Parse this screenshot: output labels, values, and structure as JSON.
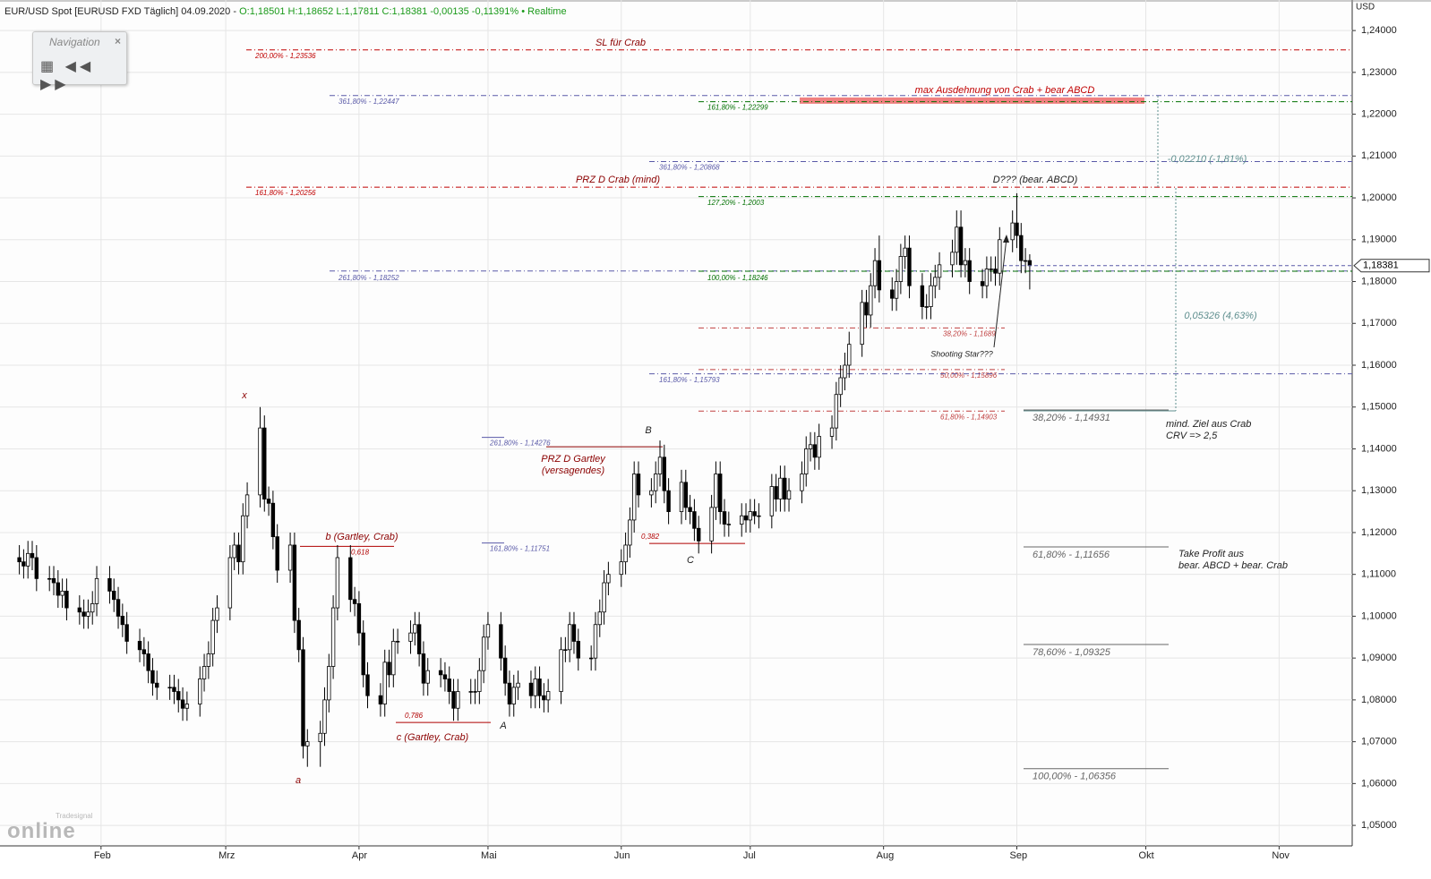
{
  "chart_data": {
    "type": "candlestick",
    "title": "EUR/USD Spot [EURUSD FXD Täglich] 04.09.2020 -",
    "quote": "O:1,18501 H:1,18652 L:1,17811 C:1,18381 -0,00135 -0,11391%",
    "status": "• Realtime",
    "y_unit": "USD",
    "last_price_label": "1,18381",
    "navigation": {
      "title": "Navigation",
      "close": "×"
    },
    "logo": {
      "top": "Tradesignal",
      "bottom": "online"
    },
    "up_color": "#ffffff",
    "down_color": "#000000",
    "grid": true,
    "xlim": [
      8.5,
      323
    ],
    "ylim": [
      1.0451,
      1.2473
    ],
    "xticks": [
      {
        "value": 32,
        "label": "Feb"
      },
      {
        "value": 61,
        "label": "Mrz"
      },
      {
        "value": 92,
        "label": "Apr"
      },
      {
        "value": 122,
        "label": "Mai"
      },
      {
        "value": 153,
        "label": "Jun"
      },
      {
        "value": 183,
        "label": "Jul"
      },
      {
        "value": 214,
        "label": "Aug"
      },
      {
        "value": 245,
        "label": "Sep"
      },
      {
        "value": 275,
        "label": "Okt"
      },
      {
        "value": 306,
        "label": "Nov"
      }
    ],
    "yticks": [
      {
        "value": 1.05,
        "label": "1,05000"
      },
      {
        "value": 1.06,
        "label": "1,06000"
      },
      {
        "value": 1.07,
        "label": "1,07000"
      },
      {
        "value": 1.08,
        "label": "1,08000"
      },
      {
        "value": 1.09,
        "label": "1,09000"
      },
      {
        "value": 1.1,
        "label": "1,10000"
      },
      {
        "value": 1.11,
        "label": "1,11000"
      },
      {
        "value": 1.12,
        "label": "1,12000"
      },
      {
        "value": 1.13,
        "label": "1,13000"
      },
      {
        "value": 1.14,
        "label": "1,14000"
      },
      {
        "value": 1.15,
        "label": "1,15000"
      },
      {
        "value": 1.16,
        "label": "1,16000"
      },
      {
        "value": 1.17,
        "label": "1,17000"
      },
      {
        "value": 1.18,
        "label": "1,18000"
      },
      {
        "value": 1.19,
        "label": "1,19000"
      },
      {
        "value": 1.2,
        "label": "1,20000"
      },
      {
        "value": 1.21,
        "label": "1,21000"
      },
      {
        "value": 1.22,
        "label": "1,22000"
      },
      {
        "value": 1.23,
        "label": "1,23000"
      },
      {
        "value": 1.24,
        "label": "1,24000"
      }
    ],
    "candles": {
      "x": [
        13,
        14,
        15,
        16,
        17,
        20,
        21,
        22,
        23,
        24,
        27,
        28,
        29,
        30,
        31,
        34,
        35,
        36,
        37,
        38,
        41,
        42,
        43,
        44,
        45,
        48,
        49,
        50,
        51,
        52,
        55,
        56,
        57,
        58,
        59,
        62,
        63,
        64,
        65,
        66,
        69,
        70,
        71,
        72,
        73,
        76,
        77,
        78,
        79,
        80,
        83,
        84,
        85,
        86,
        87,
        90,
        91,
        92,
        93,
        94,
        97,
        98,
        99,
        100,
        101,
        104,
        105,
        106,
        107,
        108,
        111,
        112,
        113,
        114,
        115,
        118,
        119,
        120,
        121,
        122,
        125,
        126,
        127,
        128,
        129,
        132,
        133,
        134,
        135,
        136,
        139,
        140,
        141,
        142,
        143,
        146,
        147,
        148,
        149,
        150,
        153,
        154,
        155,
        156,
        157,
        160,
        161,
        162,
        163,
        164,
        167,
        168,
        169,
        170,
        171,
        174,
        175,
        176,
        177,
        178,
        181,
        182,
        183,
        184,
        185,
        188,
        189,
        190,
        191,
        192,
        195,
        196,
        197,
        198,
        199,
        202,
        203,
        204,
        205,
        206,
        209,
        210,
        211,
        212,
        213,
        216,
        217,
        218,
        219,
        220,
        223,
        224,
        225,
        226,
        227,
        230,
        231,
        232,
        233,
        234,
        237,
        238,
        239,
        240,
        241,
        244,
        245,
        246,
        247,
        248
      ],
      "open": [
        1.114,
        1.113,
        1.112,
        1.115,
        1.114,
        1.109,
        1.109,
        1.108,
        1.105,
        1.106,
        1.102,
        1.101,
        1.1,
        1.101,
        1.103,
        1.109,
        1.106,
        1.104,
        1.1,
        1.098,
        1.094,
        1.092,
        1.091,
        1.087,
        1.084,
        1.083,
        1.083,
        1.082,
        1.08,
        1.078,
        1.079,
        1.085,
        1.088,
        1.091,
        1.099,
        1.102,
        1.114,
        1.117,
        1.113,
        1.124,
        1.129,
        1.145,
        1.128,
        1.127,
        1.119,
        1.111,
        1.117,
        1.099,
        1.092,
        1.069,
        1.07,
        1.072,
        1.08,
        1.088,
        1.102,
        1.114,
        1.104,
        1.103,
        1.096,
        1.086,
        1.081,
        1.079,
        1.089,
        1.086,
        1.094,
        1.094,
        1.096,
        1.098,
        1.091,
        1.084,
        1.087,
        1.086,
        1.085,
        1.082,
        1.078,
        1.082,
        1.082,
        1.082,
        1.087,
        1.095,
        1.098,
        1.09,
        1.084,
        1.079,
        1.083,
        1.084,
        1.081,
        1.085,
        1.081,
        1.08,
        1.082,
        1.092,
        1.092,
        1.098,
        1.094,
        1.09,
        1.09,
        1.098,
        1.101,
        1.108,
        1.11,
        1.113,
        1.117,
        1.123,
        1.134,
        1.129,
        1.13,
        1.134,
        1.138,
        1.13,
        1.125,
        1.132,
        1.126,
        1.125,
        1.121,
        1.118,
        1.126,
        1.134,
        1.125,
        1.122,
        1.122,
        1.124,
        1.123,
        1.125,
        1.124,
        1.124,
        1.131,
        1.128,
        1.133,
        1.128,
        1.13,
        1.134,
        1.14,
        1.141,
        1.138,
        1.143,
        1.145,
        1.153,
        1.157,
        1.16,
        1.165,
        1.175,
        1.172,
        1.179,
        1.185,
        1.178,
        1.176,
        1.18,
        1.186,
        1.188,
        1.179,
        1.174,
        1.174,
        1.179,
        1.181,
        1.184,
        1.187,
        1.193,
        1.184,
        1.185,
        1.18,
        1.179,
        1.183,
        1.183,
        1.182,
        1.19,
        1.194,
        1.191,
        1.185,
        1.18501
      ],
      "high": [
        1.117,
        1.116,
        1.118,
        1.118,
        1.117,
        1.112,
        1.112,
        1.111,
        1.109,
        1.109,
        1.105,
        1.104,
        1.104,
        1.106,
        1.112,
        1.112,
        1.109,
        1.107,
        1.103,
        1.101,
        1.097,
        1.095,
        1.094,
        1.09,
        1.087,
        1.086,
        1.086,
        1.085,
        1.083,
        1.082,
        1.088,
        1.091,
        1.094,
        1.102,
        1.105,
        1.117,
        1.12,
        1.12,
        1.127,
        1.132,
        1.15,
        1.148,
        1.131,
        1.13,
        1.122,
        1.12,
        1.12,
        1.102,
        1.095,
        1.073,
        1.075,
        1.083,
        1.091,
        1.105,
        1.117,
        1.117,
        1.107,
        1.106,
        1.099,
        1.089,
        1.084,
        1.092,
        1.092,
        1.097,
        1.097,
        1.099,
        1.101,
        1.101,
        1.094,
        1.09,
        1.09,
        1.089,
        1.088,
        1.085,
        1.085,
        1.085,
        1.085,
        1.09,
        1.098,
        1.101,
        1.101,
        1.093,
        1.087,
        1.086,
        1.087,
        1.087,
        1.088,
        1.088,
        1.084,
        1.085,
        1.095,
        1.095,
        1.101,
        1.101,
        1.097,
        1.093,
        1.101,
        1.104,
        1.111,
        1.113,
        1.116,
        1.12,
        1.126,
        1.137,
        1.137,
        1.133,
        1.137,
        1.142,
        1.141,
        1.133,
        1.135,
        1.135,
        1.129,
        1.128,
        1.124,
        1.129,
        1.137,
        1.137,
        1.128,
        1.125,
        1.127,
        1.127,
        1.128,
        1.128,
        1.127,
        1.134,
        1.134,
        1.136,
        1.136,
        1.133,
        1.137,
        1.143,
        1.144,
        1.144,
        1.146,
        1.148,
        1.156,
        1.16,
        1.163,
        1.168,
        1.178,
        1.178,
        1.182,
        1.188,
        1.191,
        1.181,
        1.183,
        1.189,
        1.191,
        1.191,
        1.182,
        1.177,
        1.182,
        1.184,
        1.187,
        1.19,
        1.197,
        1.197,
        1.188,
        1.188,
        1.183,
        1.186,
        1.186,
        1.186,
        1.193,
        1.197,
        1.2011,
        1.194,
        1.188,
        1.18652
      ],
      "low": [
        1.11,
        1.109,
        1.109,
        1.111,
        1.106,
        1.106,
        1.105,
        1.102,
        1.102,
        1.099,
        1.098,
        1.097,
        1.097,
        1.098,
        1.1,
        1.103,
        1.101,
        1.097,
        1.095,
        1.091,
        1.089,
        1.088,
        1.084,
        1.081,
        1.08,
        1.08,
        1.079,
        1.077,
        1.075,
        1.075,
        1.076,
        1.082,
        1.085,
        1.088,
        1.096,
        1.099,
        1.111,
        1.11,
        1.11,
        1.121,
        1.126,
        1.125,
        1.124,
        1.116,
        1.108,
        1.108,
        1.096,
        1.089,
        1.066,
        1.064,
        1.064,
        1.069,
        1.077,
        1.085,
        1.099,
        1.101,
        1.1,
        1.093,
        1.083,
        1.078,
        1.076,
        1.076,
        1.083,
        1.083,
        1.091,
        1.091,
        1.093,
        1.088,
        1.081,
        1.081,
        1.083,
        1.082,
        1.079,
        1.075,
        1.075,
        1.079,
        1.079,
        1.079,
        1.084,
        1.092,
        1.087,
        1.081,
        1.076,
        1.076,
        1.08,
        1.078,
        1.078,
        1.078,
        1.077,
        1.077,
        1.079,
        1.089,
        1.089,
        1.091,
        1.087,
        1.087,
        1.087,
        1.095,
        1.098,
        1.105,
        1.107,
        1.11,
        1.114,
        1.12,
        1.126,
        1.126,
        1.127,
        1.131,
        1.127,
        1.122,
        1.122,
        1.123,
        1.122,
        1.118,
        1.115,
        1.115,
        1.123,
        1.122,
        1.119,
        1.119,
        1.119,
        1.12,
        1.12,
        1.122,
        1.121,
        1.121,
        1.125,
        1.125,
        1.125,
        1.125,
        1.127,
        1.131,
        1.137,
        1.135,
        1.135,
        1.14,
        1.142,
        1.15,
        1.154,
        1.157,
        1.162,
        1.169,
        1.169,
        1.176,
        1.175,
        1.173,
        1.173,
        1.177,
        1.183,
        1.176,
        1.171,
        1.171,
        1.171,
        1.176,
        1.178,
        1.181,
        1.184,
        1.181,
        1.181,
        1.177,
        1.176,
        1.176,
        1.18,
        1.179,
        1.179,
        1.187,
        1.188,
        1.182,
        1.182,
        1.17811
      ],
      "close": [
        1.113,
        1.112,
        1.115,
        1.114,
        1.109,
        1.109,
        1.108,
        1.105,
        1.106,
        1.102,
        1.101,
        1.1,
        1.101,
        1.103,
        1.109,
        1.106,
        1.104,
        1.1,
        1.098,
        1.094,
        1.092,
        1.091,
        1.087,
        1.084,
        1.083,
        1.083,
        1.082,
        1.08,
        1.078,
        1.079,
        1.085,
        1.088,
        1.091,
        1.099,
        1.102,
        1.114,
        1.117,
        1.113,
        1.124,
        1.129,
        1.145,
        1.128,
        1.127,
        1.119,
        1.111,
        1.117,
        1.099,
        1.092,
        1.069,
        1.07,
        1.072,
        1.08,
        1.088,
        1.102,
        1.114,
        1.104,
        1.103,
        1.096,
        1.086,
        1.081,
        1.079,
        1.089,
        1.086,
        1.094,
        1.094,
        1.096,
        1.098,
        1.091,
        1.084,
        1.087,
        1.086,
        1.085,
        1.082,
        1.078,
        1.082,
        1.082,
        1.082,
        1.087,
        1.095,
        1.098,
        1.09,
        1.084,
        1.079,
        1.083,
        1.084,
        1.081,
        1.085,
        1.081,
        1.08,
        1.082,
        1.092,
        1.092,
        1.098,
        1.094,
        1.09,
        1.09,
        1.098,
        1.101,
        1.108,
        1.11,
        1.113,
        1.117,
        1.123,
        1.134,
        1.129,
        1.13,
        1.134,
        1.138,
        1.13,
        1.125,
        1.132,
        1.126,
        1.125,
        1.121,
        1.118,
        1.126,
        1.134,
        1.125,
        1.122,
        1.122,
        1.124,
        1.123,
        1.125,
        1.124,
        1.124,
        1.131,
        1.128,
        1.133,
        1.128,
        1.13,
        1.134,
        1.14,
        1.141,
        1.138,
        1.143,
        1.145,
        1.153,
        1.157,
        1.16,
        1.165,
        1.175,
        1.172,
        1.179,
        1.185,
        1.178,
        1.176,
        1.18,
        1.186,
        1.188,
        1.179,
        1.174,
        1.174,
        1.179,
        1.181,
        1.184,
        1.187,
        1.193,
        1.184,
        1.185,
        1.18,
        1.179,
        1.183,
        1.183,
        1.182,
        1.19,
        1.194,
        1.191,
        1.185,
        1.185,
        1.18381
      ]
    },
    "levels": [
      {
        "label": "200,00% - 1,23536",
        "value": 1.23536,
        "color": "#c00000"
      },
      {
        "label": "361,80% - 1,22447",
        "value": 1.22447,
        "color": "#5a5aa8"
      },
      {
        "label": "161,80% - 1,22299",
        "value": 1.22299,
        "color": "#007000"
      },
      {
        "label": "361,80% - 1,20868",
        "value": 1.20868,
        "color": "#5a5aa8"
      },
      {
        "label": "161,80% - 1,20256",
        "value": 1.20256,
        "color": "#c00000"
      },
      {
        "label": "127,20% - 1,2003",
        "value": 1.2003,
        "color": "#007000"
      },
      {
        "label": "261,80% - 1,18252",
        "value": 1.18252,
        "color": "#5a5aa8"
      },
      {
        "label": "100,00% - 1,18246",
        "value": 1.18246,
        "color": "#007000"
      },
      {
        "label": "38,20% - 1,1689",
        "value": 1.1689,
        "color": "#c04040"
      },
      {
        "label": "50,00% - 1,15896",
        "value": 1.15896,
        "color": "#c04040"
      },
      {
        "label": "161,80% - 1,15793",
        "value": 1.15793,
        "color": "#5a5aa8"
      },
      {
        "label": "61,80% - 1,14903",
        "value": 1.14903,
        "color": "#c04040"
      },
      {
        "label": "261,80% - 1,14276",
        "value": 1.14276,
        "color": "#5a5aa8"
      },
      {
        "label": "161,80% - 1,11751",
        "value": 1.11751,
        "color": "#5a5aa8"
      },
      {
        "label": "38,20% - 1,14931",
        "value": 1.14931,
        "color": "#666666"
      },
      {
        "label": "61,80% - 1,11656",
        "value": 1.11656,
        "color": "#666666"
      },
      {
        "label": "78,60% - 1,09325",
        "value": 1.09325,
        "color": "#666666"
      },
      {
        "label": "100,00% - 1,06356",
        "value": 1.06356,
        "color": "#666666"
      },
      {
        "label": "0,618",
        "value": 1.1167,
        "color": "#b00000"
      },
      {
        "label": "0,786",
        "value": 1.0746,
        "color": "#b00000"
      },
      {
        "label": "0,382",
        "value": 1.1174,
        "color": "#b00000"
      },
      {
        "value": 1.1405,
        "color": "#8b0000"
      }
    ],
    "band": {
      "label": "max Ausdehnung von Crab + bear ABCD",
      "from": 1.2225,
      "to": 1.224,
      "color": "#f08080"
    },
    "notes": [
      {
        "text": "SL für Crab",
        "color": "#8b0000"
      },
      {
        "text": "PRZ D Crab (mind)",
        "color": "#8b0000"
      },
      {
        "text": "D??? (bear. ABCD)",
        "color": "#222222"
      },
      {
        "text": "x",
        "color": "#8b0000"
      },
      {
        "text": "a",
        "color": "#8b0000"
      },
      {
        "text": "b (Gartley, Crab)",
        "color": "#8b0000"
      },
      {
        "text": "c (Gartley, Crab)",
        "color": "#8b0000"
      },
      {
        "text": "A",
        "color": "#222222"
      },
      {
        "text": "B",
        "color": "#222222"
      },
      {
        "text": "C",
        "color": "#222222"
      },
      {
        "text": "PRZ D Gartley",
        "color": "#8b0000"
      },
      {
        "text": "(versagendes)",
        "color": "#8b0000"
      },
      {
        "text": "Shooting Star???",
        "color": "#222222"
      },
      {
        "text": "mind. Ziel aus Crab",
        "color": "#222222"
      },
      {
        "text": "CRV => 2,5",
        "color": "#222222"
      },
      {
        "text": "Take Profit aus",
        "color": "#222222"
      },
      {
        "text": "bear. ABCD + bear. Crab",
        "color": "#222222"
      },
      {
        "text": "-0,02210 (-1,81%)",
        "color": "#5f8f8f"
      },
      {
        "text": "0,05326 (4,63%)",
        "color": "#5f8f8f"
      }
    ]
  }
}
